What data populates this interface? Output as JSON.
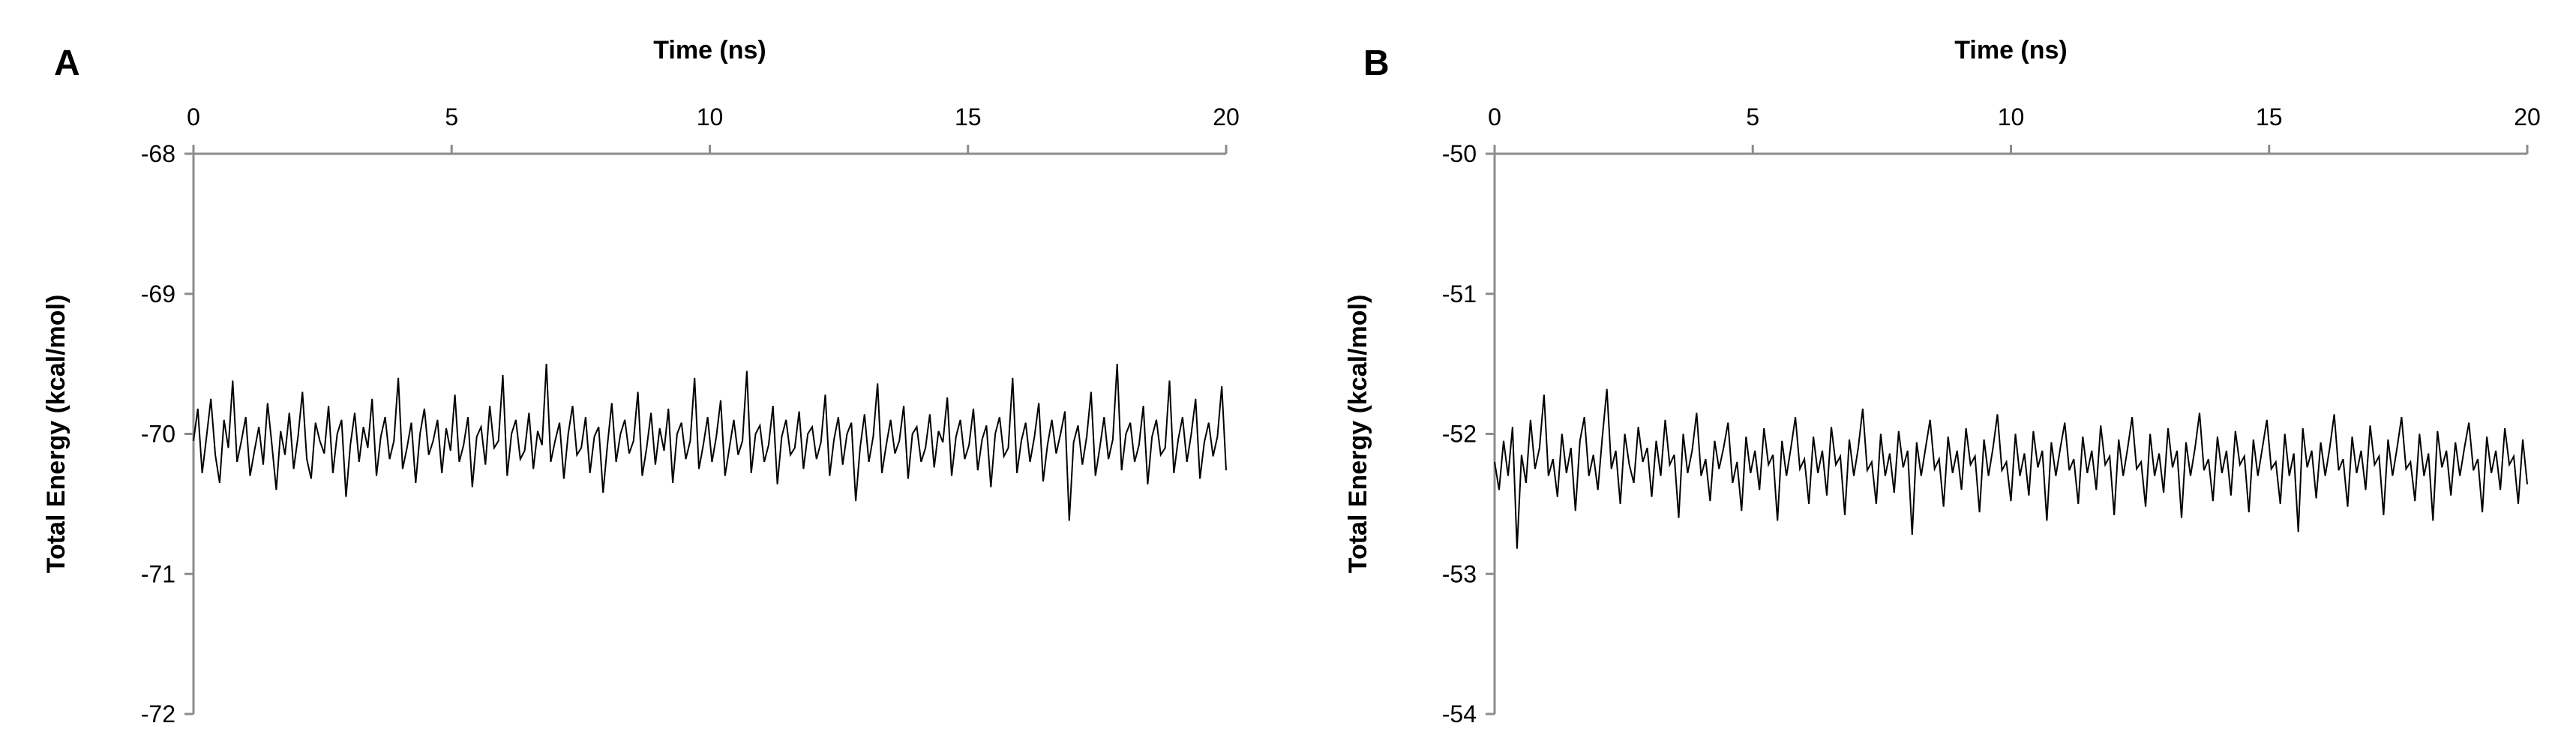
{
  "figure": {
    "panels": [
      {
        "letter": "A",
        "xlabel": "Time (ns)",
        "ylabel": "Total Energy (kcal/mol)"
      },
      {
        "letter": "B",
        "xlabel": "Time (ns)",
        "ylabel": "Total Energy (kcal/mol)"
      }
    ]
  },
  "chart_data": [
    {
      "panel": "A",
      "type": "line",
      "title": "",
      "xlabel": "Time (ns)",
      "ylabel": "Total Energy (kcal/mol)",
      "xlim": [
        0,
        20
      ],
      "ylim": [
        -72,
        -68
      ],
      "x_ticks": [
        0,
        5,
        10,
        15,
        20
      ],
      "y_ticks": [
        -68,
        -69,
        -70,
        -71,
        -72
      ],
      "x_axis_position": "top",
      "grid": false,
      "legend": "none",
      "line_color": "#000000",
      "series": [
        {
          "x_start": 0,
          "x_end": 20,
          "mean": -70.05,
          "min": -70.62,
          "max": -69.5,
          "values": [
            -70.05,
            -69.82,
            -70.28,
            -70.02,
            -69.75,
            -70.15,
            -70.35,
            -69.9,
            -70.1,
            -69.62,
            -70.2,
            -70.05,
            -69.88,
            -70.3,
            -70.12,
            -69.95,
            -70.22,
            -69.78,
            -70.08,
            -70.4,
            -69.98,
            -70.15,
            -69.85,
            -70.25,
            -70.02,
            -69.7,
            -70.18,
            -70.32,
            -69.92,
            -70.05,
            -70.14,
            -69.8,
            -70.28,
            -70.0,
            -69.9,
            -70.45,
            -70.08,
            -69.85,
            -70.2,
            -69.95,
            -70.1,
            -69.75,
            -70.3,
            -70.02,
            -69.88,
            -70.18,
            -70.05,
            -69.6,
            -70.25,
            -70.1,
            -69.92,
            -70.35,
            -70.0,
            -69.82,
            -70.15,
            -70.05,
            -69.9,
            -70.28,
            -69.96,
            -70.12,
            -69.72,
            -70.2,
            -70.08,
            -69.88,
            -70.38,
            -70.02,
            -69.95,
            -70.22,
            -69.8,
            -70.1,
            -70.05,
            -69.58,
            -70.3,
            -70.0,
            -69.9,
            -70.18,
            -70.12,
            -69.85,
            -70.25,
            -69.98,
            -70.08,
            -69.5,
            -70.2,
            -70.05,
            -69.92,
            -70.32,
            -70.0,
            -69.8,
            -70.15,
            -70.1,
            -69.88,
            -70.28,
            -70.02,
            -69.95,
            -70.42,
            -70.08,
            -69.78,
            -70.2,
            -70.0,
            -69.9,
            -70.14,
            -70.05,
            -69.7,
            -70.3,
            -70.1,
            -69.85,
            -70.22,
            -69.96,
            -70.12,
            -69.82,
            -70.35,
            -70.0,
            -69.92,
            -70.18,
            -70.05,
            -69.6,
            -70.25,
            -70.08,
            -69.88,
            -70.2,
            -70.02,
            -69.76,
            -70.3,
            -70.1,
            -69.9,
            -70.15,
            -70.05,
            -69.55,
            -70.28,
            -70.0,
            -69.94,
            -70.2,
            -70.08,
            -69.8,
            -70.36,
            -70.02,
            -69.9,
            -70.15,
            -70.1,
            -69.84,
            -70.25,
            -70.0,
            -69.95,
            -70.18,
            -70.06,
            -69.72,
            -70.3,
            -70.04,
            -69.88,
            -70.22,
            -70.0,
            -69.92,
            -70.48,
            -70.1,
            -69.86,
            -70.2,
            -70.02,
            -69.64,
            -70.28,
            -70.08,
            -69.9,
            -70.14,
            -70.05,
            -69.8,
            -70.32,
            -70.0,
            -69.95,
            -70.2,
            -70.1,
            -69.86,
            -70.24,
            -69.98,
            -70.06,
            -69.74,
            -70.3,
            -70.02,
            -69.9,
            -70.18,
            -70.08,
            -69.82,
            -70.26,
            -70.04,
            -69.94,
            -70.38,
            -70.0,
            -69.88,
            -70.16,
            -70.1,
            -69.6,
            -70.28,
            -70.05,
            -69.92,
            -70.2,
            -70.02,
            -69.78,
            -70.34,
            -70.08,
            -69.9,
            -70.14,
            -70.0,
            -69.84,
            -70.62,
            -70.06,
            -69.94,
            -70.22,
            -70.02,
            -69.7,
            -70.3,
            -70.1,
            -69.88,
            -70.18,
            -70.04,
            -69.5,
            -70.26,
            -70.0,
            -69.92,
            -70.2,
            -70.08,
            -69.8,
            -70.36,
            -70.02,
            -69.9,
            -70.15,
            -70.1,
            -69.62,
            -70.28,
            -70.04,
            -69.88,
            -70.2,
            -70.0,
            -69.75,
            -70.32,
            -70.06,
            -69.92,
            -70.16,
            -70.02,
            -69.66,
            -70.26
          ]
        }
      ]
    },
    {
      "panel": "B",
      "type": "line",
      "title": "",
      "xlabel": "Time (ns)",
      "ylabel": "Total Energy (kcal/mol)",
      "xlim": [
        0,
        20
      ],
      "ylim": [
        -54,
        -50
      ],
      "x_ticks": [
        0,
        5,
        10,
        15,
        20
      ],
      "y_ticks": [
        -50,
        -51,
        -52,
        -53,
        -54
      ],
      "x_axis_position": "top",
      "grid": false,
      "legend": "none",
      "line_color": "#000000",
      "series": [
        {
          "x_start": 0,
          "x_end": 20,
          "mean": -52.2,
          "min": -52.82,
          "max": -51.68,
          "values": [
            -52.2,
            -52.4,
            -52.05,
            -52.3,
            -51.95,
            -52.82,
            -52.15,
            -52.35,
            -51.9,
            -52.25,
            -52.1,
            -51.72,
            -52.3,
            -52.18,
            -52.45,
            -52.0,
            -52.28,
            -52.1,
            -52.55,
            -52.05,
            -51.88,
            -52.3,
            -52.15,
            -52.4,
            -52.02,
            -51.68,
            -52.25,
            -52.12,
            -52.5,
            -52.0,
            -52.22,
            -52.35,
            -51.95,
            -52.2,
            -52.1,
            -52.45,
            -52.05,
            -52.3,
            -51.9,
            -52.22,
            -52.15,
            -52.6,
            -52.0,
            -52.28,
            -52.12,
            -51.85,
            -52.3,
            -52.18,
            -52.48,
            -52.05,
            -52.25,
            -52.1,
            -51.92,
            -52.35,
            -52.2,
            -52.55,
            -52.02,
            -52.28,
            -52.12,
            -52.4,
            -51.96,
            -52.22,
            -52.15,
            -52.62,
            -52.05,
            -52.3,
            -52.1,
            -51.88,
            -52.25,
            -52.18,
            -52.5,
            -52.02,
            -52.28,
            -52.12,
            -52.44,
            -51.95,
            -52.22,
            -52.16,
            -52.58,
            -52.04,
            -52.3,
            -52.1,
            -51.82,
            -52.26,
            -52.2,
            -52.5,
            -52.0,
            -52.3,
            -52.14,
            -52.42,
            -51.98,
            -52.24,
            -52.12,
            -52.72,
            -52.06,
            -52.3,
            -52.1,
            -51.9,
            -52.25,
            -52.18,
            -52.52,
            -52.02,
            -52.28,
            -52.12,
            -52.4,
            -51.96,
            -52.22,
            -52.16,
            -52.56,
            -52.04,
            -52.3,
            -52.1,
            -51.86,
            -52.26,
            -52.2,
            -52.48,
            -52.0,
            -52.3,
            -52.14,
            -52.44,
            -51.98,
            -52.24,
            -52.12,
            -52.62,
            -52.06,
            -52.3,
            -52.1,
            -51.92,
            -52.26,
            -52.18,
            -52.5,
            -52.02,
            -52.28,
            -52.12,
            -52.4,
            -51.94,
            -52.22,
            -52.16,
            -52.58,
            -52.04,
            -52.3,
            -52.1,
            -51.88,
            -52.25,
            -52.2,
            -52.52,
            -52.0,
            -52.3,
            -52.14,
            -52.42,
            -51.96,
            -52.24,
            -52.12,
            -52.6,
            -52.06,
            -52.3,
            -52.1,
            -51.85,
            -52.26,
            -52.18,
            -52.48,
            -52.02,
            -52.28,
            -52.12,
            -52.44,
            -51.98,
            -52.22,
            -52.16,
            -52.56,
            -52.04,
            -52.3,
            -52.1,
            -51.9,
            -52.25,
            -52.2,
            -52.5,
            -52.0,
            -52.3,
            -52.14,
            -52.7,
            -51.96,
            -52.24,
            -52.12,
            -52.46,
            -52.06,
            -52.3,
            -52.1,
            -51.86,
            -52.26,
            -52.18,
            -52.52,
            -52.02,
            -52.28,
            -52.12,
            -52.4,
            -51.94,
            -52.22,
            -52.16,
            -52.58,
            -52.04,
            -52.3,
            -52.1,
            -51.88,
            -52.25,
            -52.2,
            -52.48,
            -52.0,
            -52.3,
            -52.14,
            -52.62,
            -51.98,
            -52.24,
            -52.12,
            -52.44,
            -52.06,
            -52.3,
            -52.1,
            -51.92,
            -52.26,
            -52.18,
            -52.56,
            -52.02,
            -52.28,
            -52.12,
            -52.4,
            -51.96,
            -52.22,
            -52.16,
            -52.5,
            -52.04,
            -52.36
          ]
        }
      ]
    }
  ]
}
